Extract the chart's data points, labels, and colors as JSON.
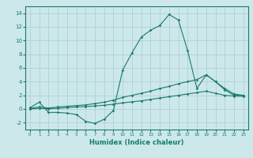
{
  "xlabel": "Humidex (Indice chaleur)",
  "background_color": "#cce8ea",
  "grid_color": "#aacccc",
  "line_color": "#1a7a6e",
  "xlim": [
    -0.5,
    23.5
  ],
  "ylim": [
    -3.0,
    15.0
  ],
  "xticks": [
    0,
    1,
    2,
    3,
    4,
    5,
    6,
    7,
    8,
    9,
    10,
    11,
    12,
    13,
    14,
    15,
    16,
    17,
    18,
    19,
    20,
    21,
    22,
    23
  ],
  "yticks": [
    -2,
    0,
    2,
    4,
    6,
    8,
    10,
    12,
    14
  ],
  "line1_x": [
    0,
    1,
    2,
    3,
    4,
    5,
    6,
    7,
    8,
    9,
    10,
    11,
    12,
    13,
    14,
    15,
    16,
    17,
    18,
    19,
    20,
    21,
    22,
    23
  ],
  "line1_y": [
    0.2,
    1.0,
    -0.5,
    -0.5,
    -0.6,
    -0.8,
    -1.8,
    -2.1,
    -1.5,
    -0.2,
    5.7,
    8.2,
    10.5,
    11.5,
    12.2,
    13.8,
    13.0,
    8.5,
    3.0,
    5.0,
    4.0,
    2.8,
    2.0,
    2.0
  ],
  "line2_x": [
    0,
    1,
    2,
    3,
    4,
    5,
    6,
    7,
    8,
    9,
    10,
    11,
    12,
    13,
    14,
    15,
    16,
    17,
    18,
    19,
    20,
    21,
    22,
    23
  ],
  "line2_y": [
    0.1,
    0.3,
    0.15,
    0.3,
    0.4,
    0.5,
    0.6,
    0.8,
    1.0,
    1.3,
    1.7,
    2.0,
    2.3,
    2.6,
    3.0,
    3.3,
    3.7,
    4.0,
    4.3,
    5.0,
    4.0,
    3.0,
    2.2,
    2.0
  ],
  "line3_x": [
    0,
    1,
    2,
    3,
    4,
    5,
    6,
    7,
    8,
    9,
    10,
    11,
    12,
    13,
    14,
    15,
    16,
    17,
    18,
    19,
    20,
    21,
    22,
    23
  ],
  "line3_y": [
    0.0,
    0.1,
    0.05,
    0.1,
    0.2,
    0.3,
    0.35,
    0.45,
    0.55,
    0.7,
    0.9,
    1.05,
    1.2,
    1.4,
    1.6,
    1.8,
    2.0,
    2.2,
    2.4,
    2.6,
    2.3,
    2.0,
    1.9,
    1.85
  ]
}
